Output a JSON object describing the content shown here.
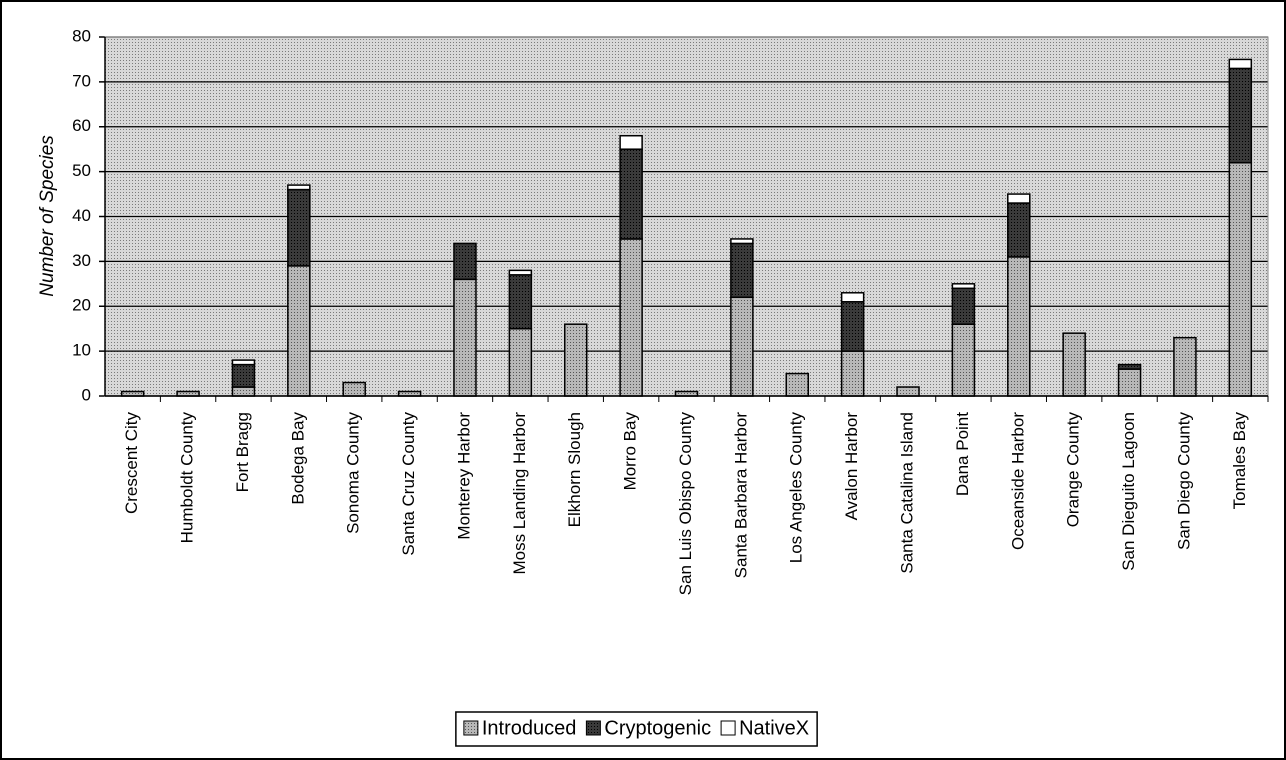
{
  "chart_data": {
    "type": "stacked-bar",
    "y_label": "Number of Species",
    "categories": [
      "Crescent City",
      "Humboldt County",
      "Fort Bragg",
      "Bodega Bay",
      "Sonoma County",
      "Santa Cruz County",
      "Monterey Harbor",
      "Moss Landing Harbor",
      "Elkhorn Slough",
      "Morro Bay",
      "San Luis Obispo County",
      "Santa Barbara Harbor",
      "Los Angeles County",
      "Avalon Harbor",
      "Santa Catalina Island",
      "Dana Point",
      "Oceanside Harbor",
      "Orange County",
      "San Dieguito Lagoon",
      "San Diego County",
      "Tomales Bay"
    ],
    "series": [
      {
        "name": "Introduced",
        "color": "#b8b8b8",
        "values": [
          1,
          1,
          2,
          29,
          3,
          1,
          26,
          15,
          16,
          35,
          1,
          22,
          5,
          10,
          2,
          16,
          31,
          14,
          6,
          13,
          52
        ]
      },
      {
        "name": "Cryptogenic",
        "color": "#3a3a3a",
        "values": [
          0,
          0,
          5,
          17,
          0,
          0,
          8,
          12,
          0,
          20,
          0,
          12,
          0,
          11,
          0,
          8,
          12,
          0,
          1,
          0,
          21
        ]
      },
      {
        "name": "NativeX",
        "color": "#ffffff",
        "values": [
          0,
          0,
          1,
          1,
          0,
          0,
          0,
          1,
          0,
          3,
          0,
          1,
          0,
          2,
          0,
          1,
          2,
          0,
          0,
          0,
          2
        ]
      }
    ],
    "ylim": [
      0,
      80
    ],
    "yticks": [
      0,
      10,
      20,
      30,
      40,
      50,
      60,
      70,
      80
    ],
    "grid": true,
    "legend": "bottom"
  }
}
